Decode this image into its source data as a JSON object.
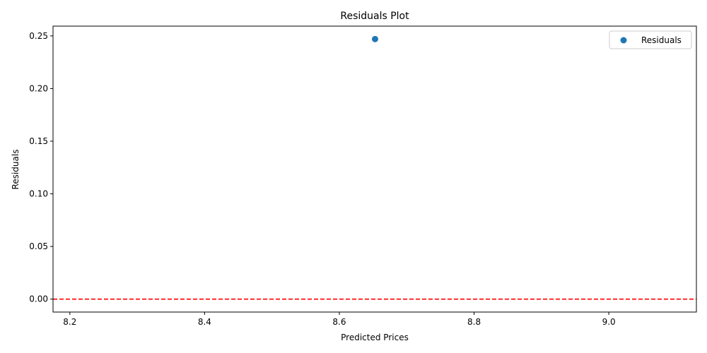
{
  "chart_data": {
    "type": "scatter",
    "title": "Residuals Plot",
    "xlabel": "Predicted Prices",
    "ylabel": "Residuals",
    "xlim": [
      8.175,
      9.13
    ],
    "ylim": [
      -0.0123,
      0.2593
    ],
    "xticks": [
      8.2,
      8.4,
      8.6,
      8.8,
      9.0
    ],
    "xtick_labels": [
      "8.2",
      "8.4",
      "8.6",
      "8.8",
      "9.0"
    ],
    "yticks": [
      0.0,
      0.05,
      0.1,
      0.15,
      0.2,
      0.25
    ],
    "ytick_labels": [
      "0.00",
      "0.05",
      "0.10",
      "0.15",
      "0.20",
      "0.25"
    ],
    "series": [
      {
        "name": "Residuals",
        "color": "#1f77b4",
        "points": [
          {
            "x": 8.653,
            "y": 0.247
          }
        ]
      }
    ],
    "reference_line": {
      "y": 0.0,
      "color": "#ff0000",
      "style": "dashed"
    },
    "legend_position": "top-right",
    "grid": false
  }
}
